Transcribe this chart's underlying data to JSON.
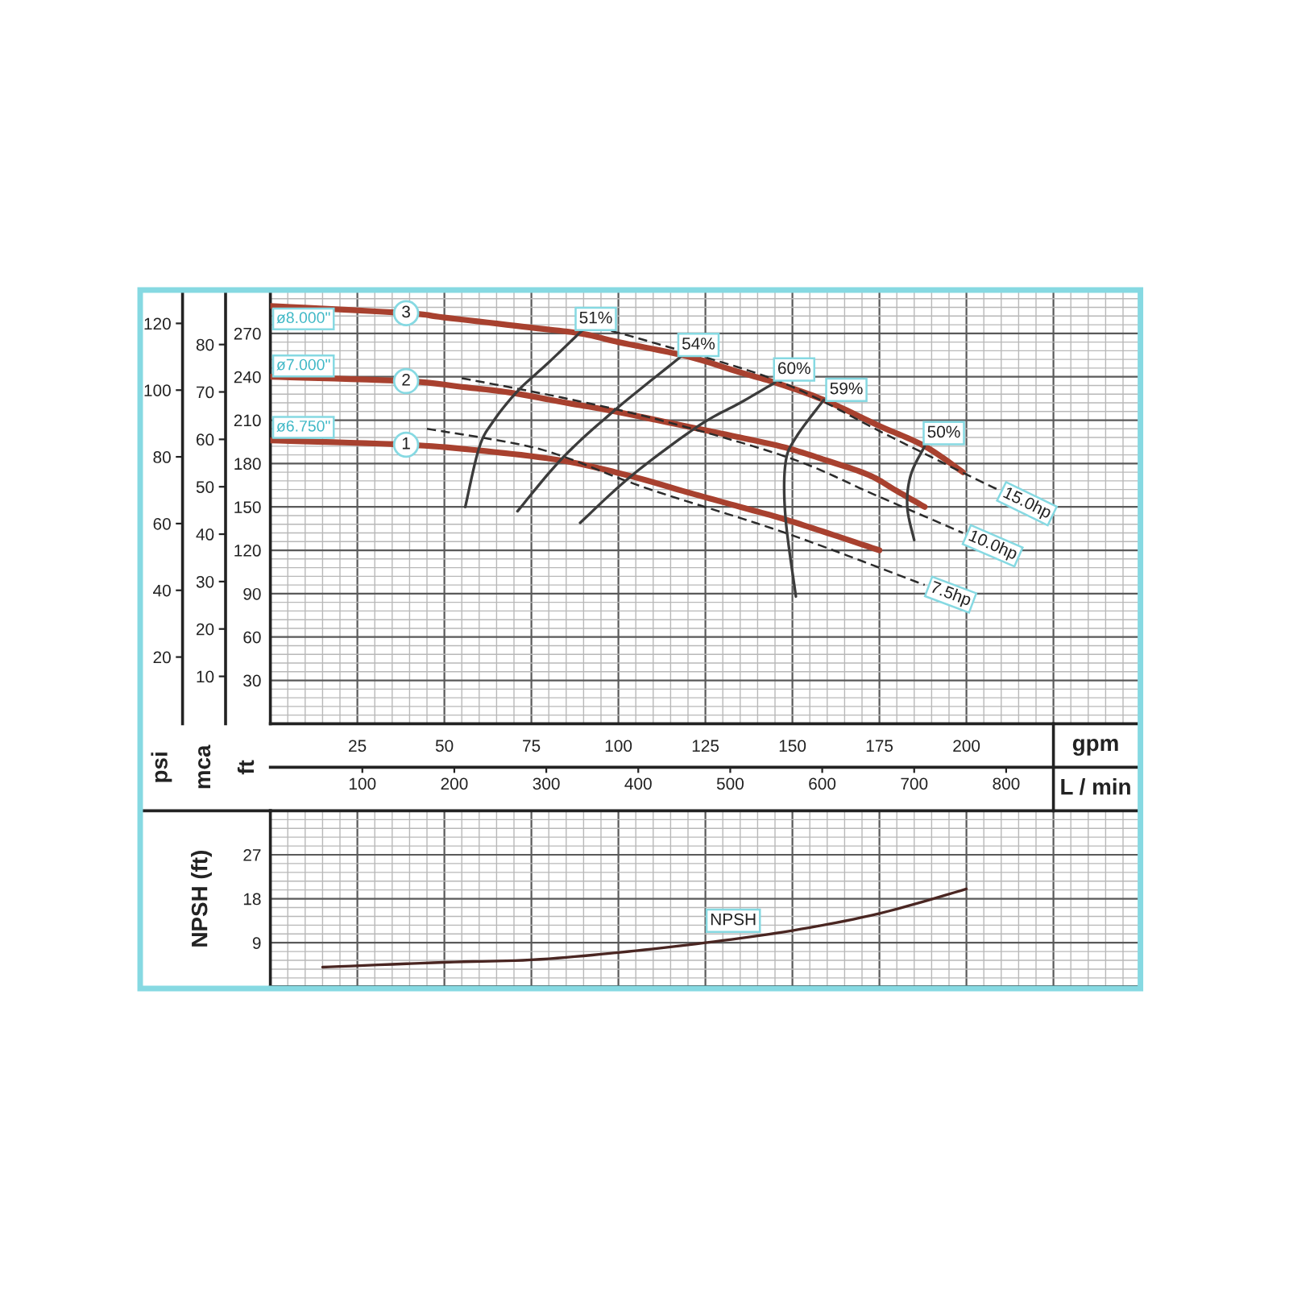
{
  "chart_data": [
    {
      "type": "line",
      "xlabel": "gpm",
      "x2label": "L / min",
      "ylabel": "ft",
      "y2label": "mca",
      "y3label": "psi",
      "xlim": [
        0,
        250
      ],
      "xticks": [
        25,
        50,
        75,
        100,
        125,
        150,
        175,
        200,
        {
          "value": 225,
          "label": null
        }
      ],
      "x2lim": [
        0,
        946
      ],
      "x2ticks": [
        100,
        200,
        300,
        400,
        500,
        600,
        700,
        800
      ],
      "ylim": [
        0,
        300
      ],
      "yticks": [
        30,
        60,
        90,
        120,
        150,
        180,
        210,
        240,
        270
      ],
      "y2lim": [
        0,
        91.5
      ],
      "y2ticks": [
        10,
        20,
        30,
        40,
        50,
        60,
        70,
        80
      ],
      "y3lim": [
        0,
        130
      ],
      "y3ticks": [
        20,
        40,
        60,
        80,
        100,
        120
      ],
      "grid": true,
      "series": [
        {
          "name": "1",
          "color": "#a8412f",
          "x": [
            0,
            39,
            60,
            84,
            104,
            120,
            135,
            147,
            160,
            175
          ],
          "values": [
            196,
            193,
            189,
            182,
            171,
            160,
            150,
            142,
            132,
            120
          ]
        },
        {
          "name": "2",
          "color": "#a8412f",
          "x": [
            0,
            39,
            55,
            69,
            85,
            99,
            123,
            135,
            148,
            160,
            172,
            180,
            188
          ],
          "values": [
            240,
            237,
            233,
            229,
            222,
            216,
            204,
            198,
            191,
            182,
            172,
            161,
            150
          ]
        },
        {
          "name": "3",
          "color": "#a8412f",
          "x": [
            0,
            39,
            50,
            75,
            89,
            100,
            120,
            135,
            145,
            159,
            175,
            188,
            199
          ],
          "values": [
            289,
            284,
            281,
            274,
            270,
            264,
            254,
            243,
            236,
            224,
            206,
            192,
            174
          ]
        },
        {
          "name": "7.5hp",
          "color": "#2b2b2b",
          "line_style": "dashed",
          "x": [
            45,
            70,
            84,
            108,
            148,
            188
          ],
          "values": [
            204,
            194,
            185,
            163,
            132,
            96
          ]
        },
        {
          "name": "10.0hp",
          "color": "#2b2b2b",
          "line_style": "dashed",
          "x": [
            55,
            83,
            112,
            149,
            174,
            199
          ],
          "values": [
            239,
            226,
            210,
            184,
            158,
            132
          ]
        },
        {
          "name": "15.0hp",
          "color": "#2b2b2b",
          "line_style": "dashed",
          "x": [
            94,
            108,
            146,
            177,
            197,
            209
          ],
          "values": [
            274,
            265,
            237,
            200,
            176,
            162
          ]
        },
        {
          "color": "#3c3c3c",
          "x": [
            56,
            60,
            64,
            71,
            80,
            90
          ],
          "values": [
            150,
            191,
            209,
            230,
            250,
            273
          ]
        },
        {
          "color": "#3c3c3c",
          "x": [
            71,
            84,
            99,
            118
          ],
          "values": [
            147,
            184,
            217,
            254
          ]
        },
        {
          "color": "#3c3c3c",
          "x": [
            89,
            104,
            123,
            135,
            145
          ],
          "values": [
            139,
            172,
            206,
            222,
            236
          ]
        },
        {
          "color": "#3c3c3c",
          "x": [
            151,
            148,
            148,
            151,
            159
          ],
          "values": [
            88,
            143,
            180,
            198,
            224
          ]
        },
        {
          "color": "#3c3c3c",
          "x": [
            185,
            183,
            184,
            188
          ],
          "values": [
            127,
            150,
            172,
            192
          ]
        }
      ],
      "annotations": [
        {
          "text": "ø8.000\"",
          "x": 9.5,
          "y": 280
        },
        {
          "text": "ø7.000\"",
          "x": 9.5,
          "y": 247.5
        },
        {
          "text": "ø6.750\"",
          "x": 9.5,
          "y": 205
        },
        {
          "text": "51%",
          "x": 93.5,
          "y": 280
        },
        {
          "text": "54%",
          "x": 123,
          "y": 262
        },
        {
          "text": "60%",
          "x": 150.5,
          "y": 245
        },
        {
          "text": "59%",
          "x": 165.5,
          "y": 231
        },
        {
          "text": "50%",
          "x": 193.5,
          "y": 201
        }
      ]
    },
    {
      "type": "line",
      "ylabel": "NPSH (ft)",
      "xlim": [
        0,
        250
      ],
      "xticks": [
        25,
        50,
        75,
        100,
        125,
        150,
        175,
        200,
        {
          "value": 225,
          "label": null
        }
      ],
      "ylim": [
        0,
        36
      ],
      "yticks": [
        9,
        18,
        27
      ],
      "tick_labels": "y",
      "grid": true,
      "series": [
        {
          "color": "#4a2622",
          "x": [
            15,
            50,
            75,
            100,
            125,
            150,
            175,
            200
          ],
          "values": [
            4,
            5,
            5.5,
            7,
            9,
            11.5,
            15,
            20
          ]
        }
      ],
      "annotations": [
        {
          "text": "NPSH",
          "x": 133,
          "y": 13.5
        }
      ]
    }
  ]
}
